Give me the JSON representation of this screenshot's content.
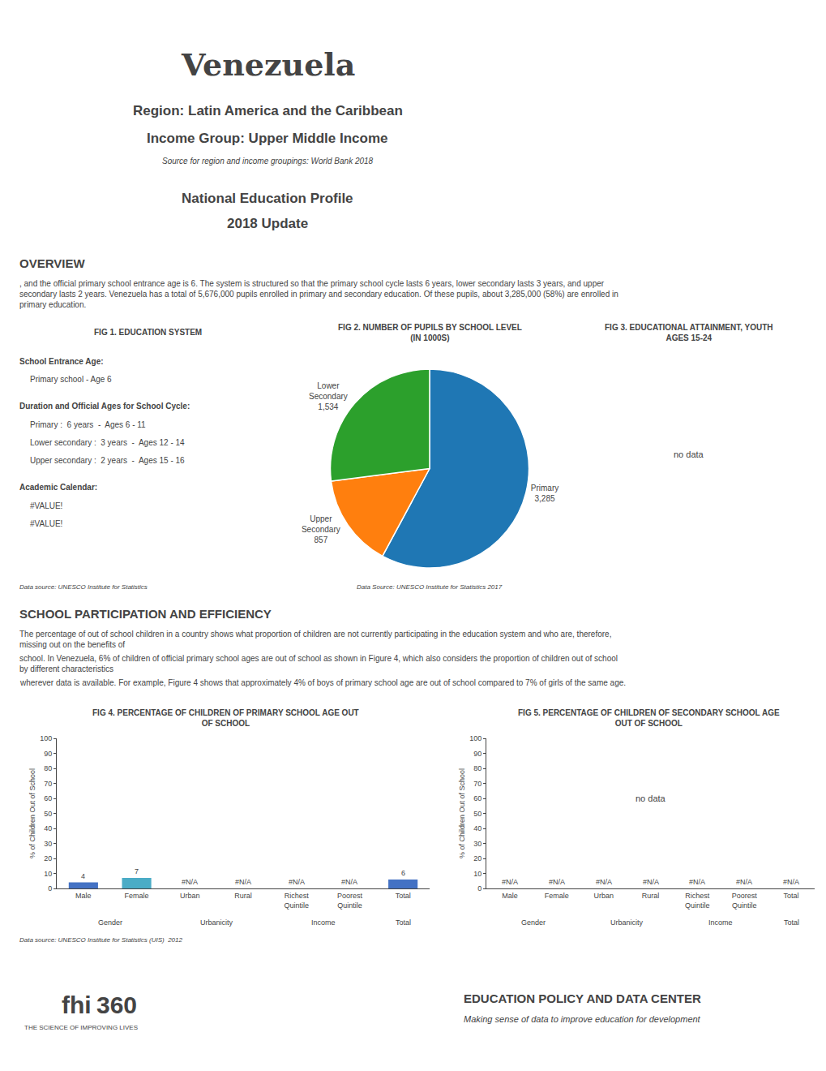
{
  "chart_data": [
    {
      "type": "pie",
      "title": "FIG 2. NUMBER OF PUPILS BY SCHOOL LEVEL\n(IN 1000S)",
      "categories": [
        "Primary",
        "Upper\nSecondary",
        "Lower\nSecondary"
      ],
      "values": [
        3285,
        857,
        1534
      ],
      "value_labels": [
        "3,285",
        "857",
        "1,534"
      ],
      "data_labels": true,
      "annotations": [
        "Venezuela",
        "Region: Latin America and the Caribbean",
        "Income Group: Upper Middle Income",
        "Source for region and income groupings: World Bank 2018",
        "National Education Profile",
        "2018 Update",
        "OVERVIEW",
        ", and the official primary school entrance age is 6. The system is structured so that the primary school cycle lasts 6 years, lower secondary lasts 3 years, and upper secondary lasts 2 years. Venezuela has a total of 5,676,000 pupils enrolled in primary and secondary education. Of these pupils, about 3,285,000 (58%) are enrolled in primary education.",
        "FIG 1. EDUCATION SYSTEM",
        "School Entrance Age:",
        "Primary school - Age 6",
        "Duration and Official Ages for School Cycle:",
        "Primary :  6 years  -  Ages 6 - 11",
        "Lower secondary :  3 years  -  Ages 12 - 14",
        "Upper secondary :  2 years  -  Ages 15 - 16",
        "Academic Calendar:",
        "#VALUE!",
        "#VALUE!",
        "Data source: UNESCO Institute for Statistics",
        "FIG 3. EDUCATIONAL ATTAINMENT, YOUTH\nAGES 15-24",
        "no data",
        "SCHOOL PARTICIPATION AND EFFICIENCY",
        "The percentage of out of school children in a country shows what proportion of children are not currently participating in the education system and who are, therefore, missing out on the benefits of",
        "school. In Venezuela, 6% of children of official primary school ages are out of school as shown in Figure 4, which also considers the proportion of children out of school by different characteristics",
        "wherever data is available. For example, Figure 4 shows that approximately 4% of boys of primary school age are out of school compared to 7% of girls of the same age.",
        "fhi",
        "360",
        "THE SCIENCE OF IMPROVING LIVES",
        "EDUCATION POLICY AND DATA CENTER",
        "Making sense of data to improve education for development",
        "Data Source: UNESCO Institute for Statistics 2017"
      ]
    },
    {
      "type": "bar",
      "title": "FIG 4. PERCENTAGE OF CHILDREN OF PRIMARY SCHOOL AGE OUT\nOF SCHOOL",
      "categories": [
        "Male",
        "Female",
        "Urban",
        "Rural",
        "Richest\nQuintile",
        "Poorest\nQuintile",
        "Total"
      ],
      "values": [
        4,
        7,
        0,
        0,
        0,
        0,
        6
      ],
      "value_labels": [
        "4",
        "7",
        "#N/A",
        "#N/A",
        "#N/A",
        "#N/A",
        "6"
      ],
      "data_labels": true,
      "colors": [
        "#4472C4",
        "#4BACC6",
        "#cccccc",
        "#cccccc",
        "#cccccc",
        "#cccccc",
        "#4472C4"
      ],
      "ylabel": "% of Children Out of School",
      "ylim": [
        0,
        100
      ],
      "yticks": [
        0,
        10,
        20,
        30,
        40,
        50,
        60,
        70,
        80,
        90,
        100
      ],
      "grid": false,
      "annotations": [
        "Gender",
        "Urbanicity",
        "Income",
        "Total",
        "Data source: UNESCO Institute for Statistics (UIS)  2012"
      ]
    },
    {
      "type": "bar",
      "title": "FIG 5. PERCENTAGE OF CHILDREN OF SECONDARY SCHOOL AGE\nOUT OF SCHOOL",
      "categories": [
        "Male",
        "Female",
        "Urban",
        "Rural",
        "Richest\nQuintile",
        "Poorest\nQuintile",
        "Total"
      ],
      "values": [
        0,
        0,
        0,
        0,
        0,
        0,
        0
      ],
      "value_labels": [
        "#N/A",
        "#N/A",
        "#N/A",
        "#N/A",
        "#N/A",
        "#N/A",
        "#N/A"
      ],
      "data_labels": true,
      "color": "#cccccc",
      "ylabel": "% of Children Out of School",
      "ylim": [
        0,
        100
      ],
      "yticks": [
        0,
        10,
        20,
        30,
        40,
        50,
        60,
        70,
        80,
        90,
        100
      ],
      "grid": false,
      "annotations": [
        "no data",
        "Gender",
        "Urbanicity",
        "Income",
        "Total"
      ]
    }
  ]
}
